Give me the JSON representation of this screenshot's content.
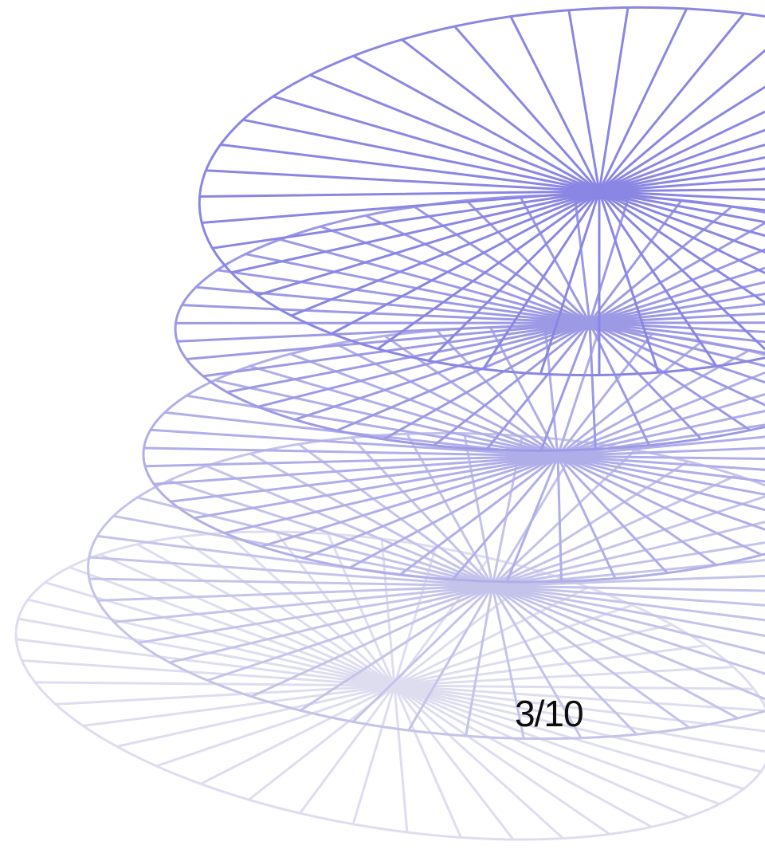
{
  "slide": {
    "counter": "3/10",
    "current": 3,
    "total": 10
  },
  "artwork": {
    "name": "stacked-spoked-rings",
    "ring_count": 5,
    "colors": [
      "#8A86E3",
      "#9C99E5",
      "#B0AEE9",
      "#C4C3EA",
      "#DEDDF0"
    ]
  }
}
